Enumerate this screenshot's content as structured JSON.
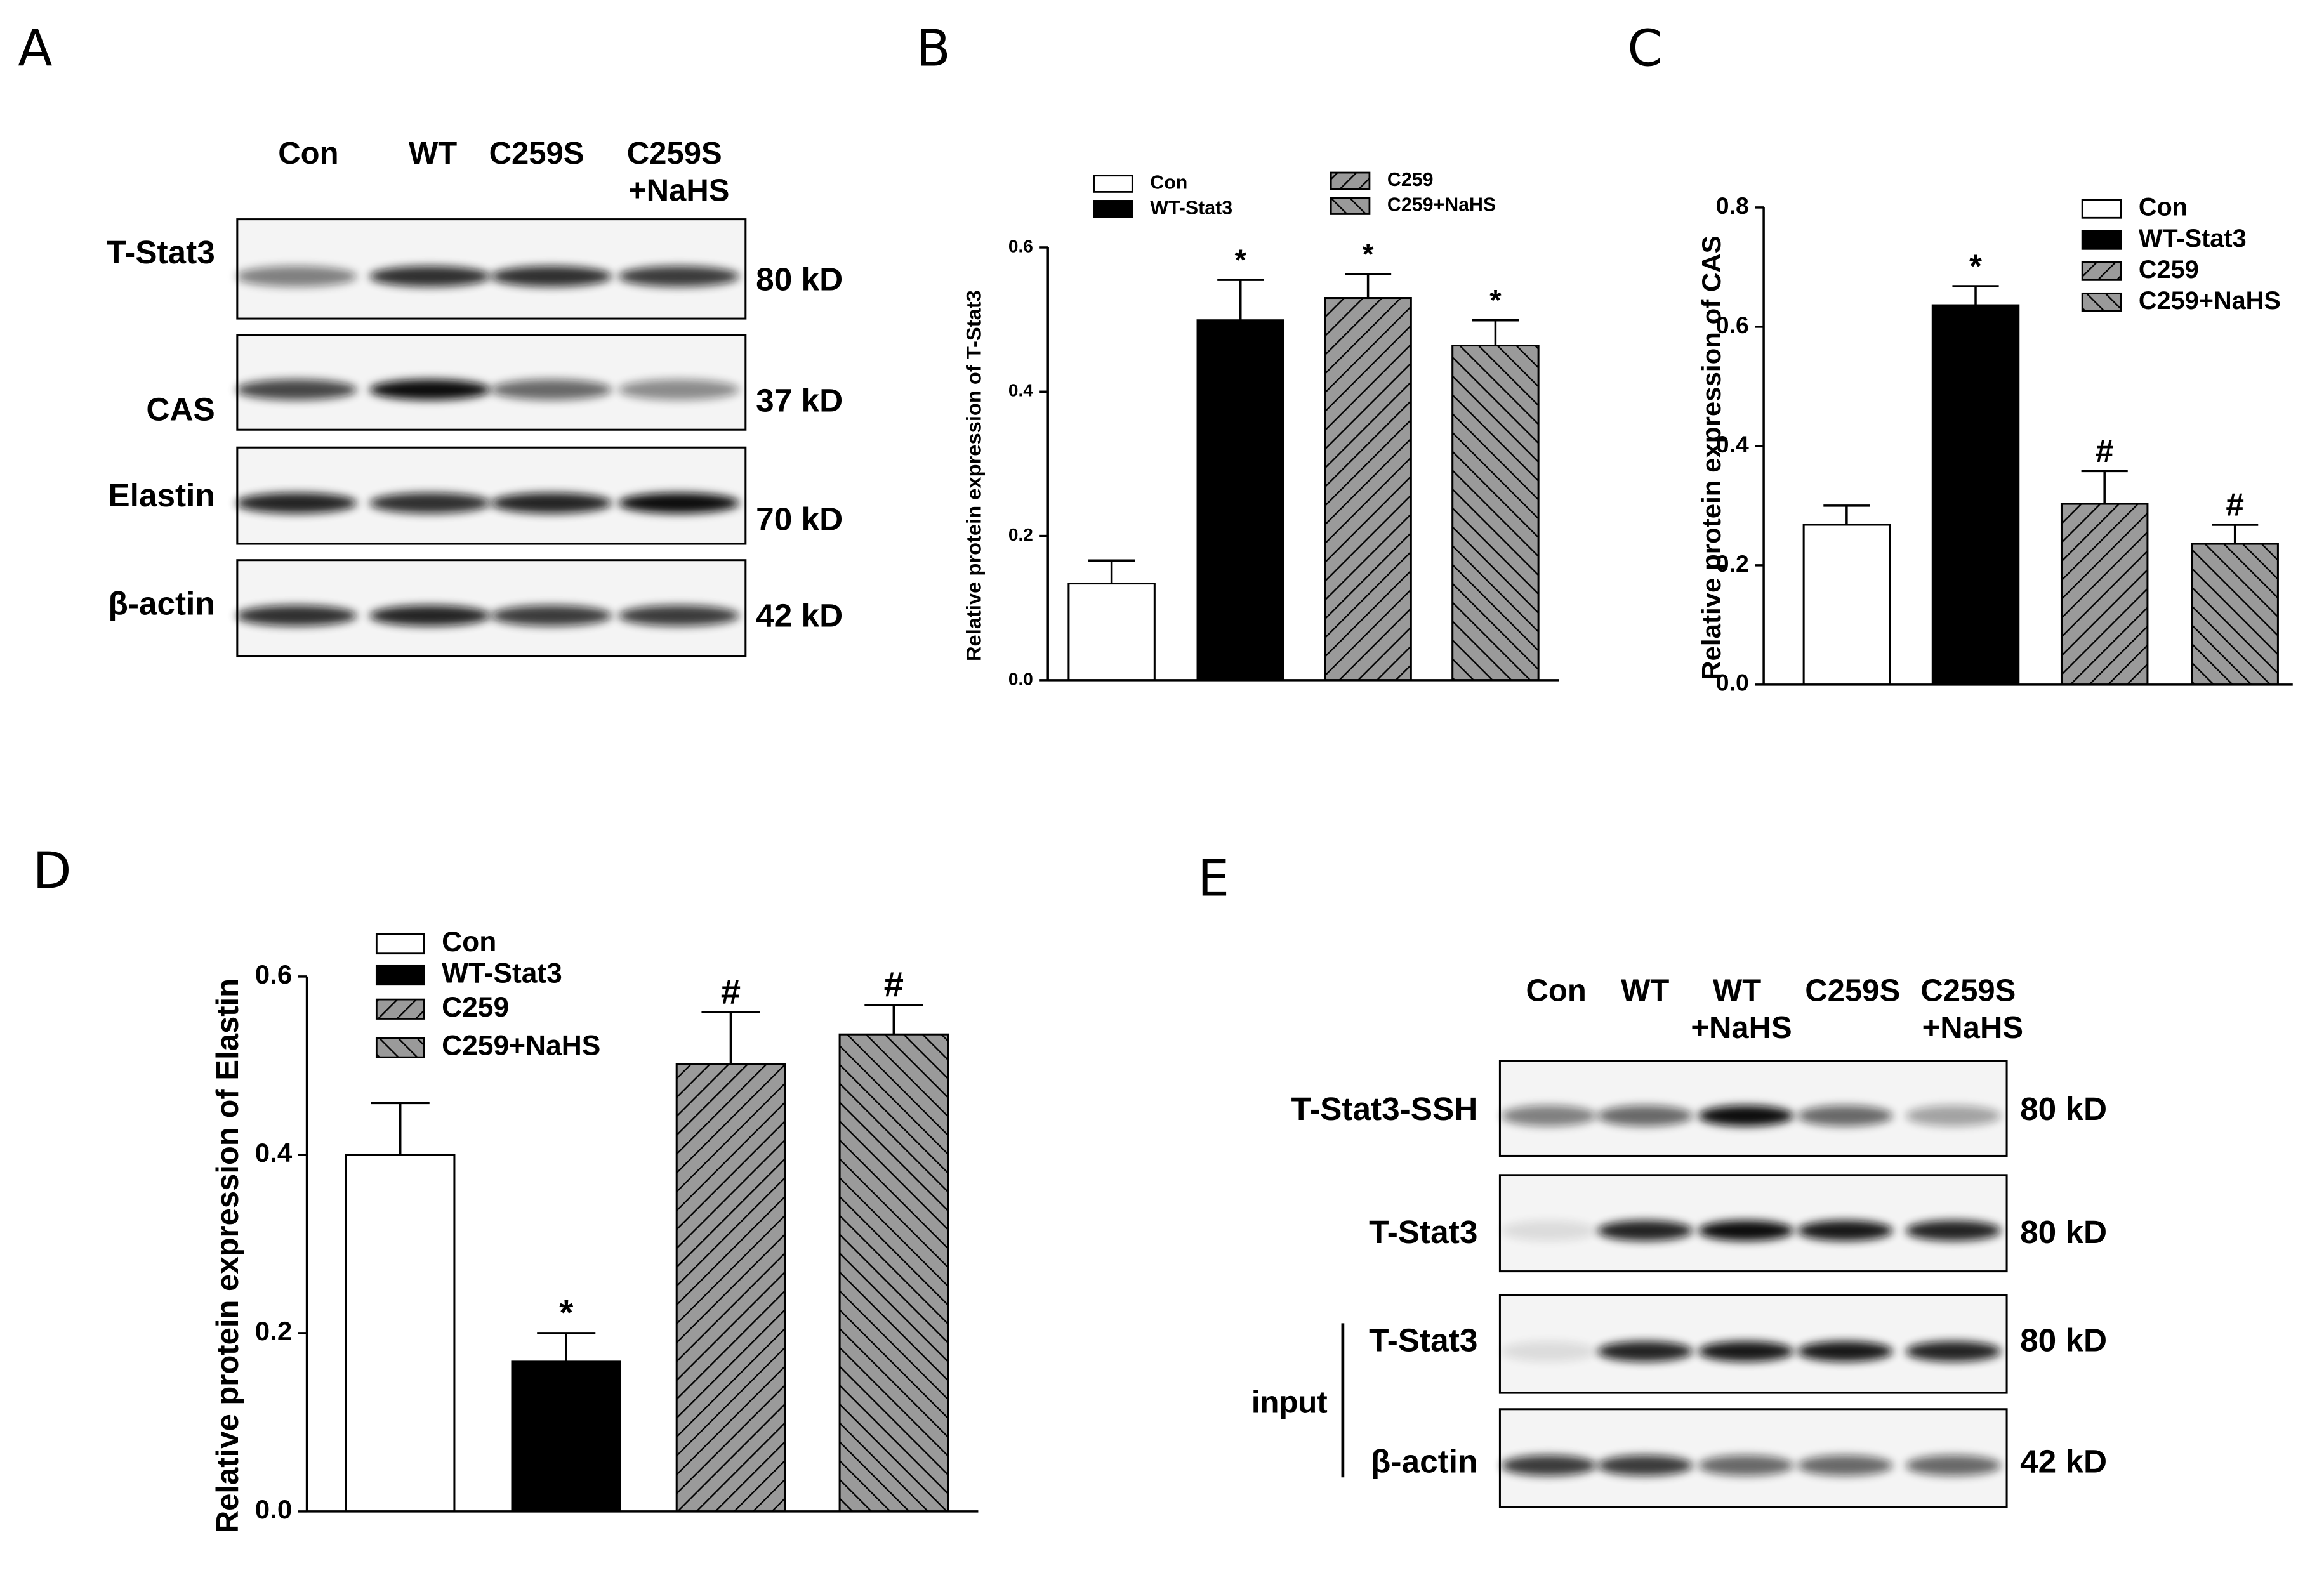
{
  "blot_a": {
    "panel": "A",
    "lanes": [
      [
        "Con"
      ],
      [
        "WT"
      ],
      [
        "C259S"
      ],
      [
        "C259S",
        "+NaHS"
      ]
    ],
    "rows": [
      {
        "label": "T-Stat3",
        "size": "80 kD"
      },
      {
        "label": "CAS",
        "size": "37 kD"
      },
      {
        "label": "Elastin",
        "size": "70 kD"
      },
      {
        "label": "β-actin",
        "size": "42 kD"
      }
    ]
  },
  "blot_e": {
    "panel": "E",
    "lanes": [
      [
        "Con"
      ],
      [
        "WT"
      ],
      [
        "WT",
        "+NaHS"
      ],
      [
        "C259S"
      ],
      [
        "C259S",
        "+NaHS"
      ]
    ],
    "rows": [
      {
        "label": "T-Stat3-SSH",
        "size": "80 kD"
      },
      {
        "label": "T-Stat3",
        "size": "80 kD"
      },
      {
        "label": "T-Stat3",
        "size": "80 kD"
      },
      {
        "label": "β-actin",
        "size": "42 kD"
      }
    ],
    "group_label": "input"
  },
  "chart_data": [
    {
      "type": "bar",
      "panel": "B",
      "ylabel": "Relative protein expression of T-Stat3",
      "ylim": [
        0,
        0.6
      ],
      "yticks": [
        {
          "value": 0,
          "label": "0.0"
        },
        0.2,
        0.4,
        0.6
      ],
      "series": [
        {
          "name": "Con",
          "color": "#ffffff",
          "hatch": "none",
          "values": [
            0.134
          ],
          "errors": [
            0.032
          ]
        },
        {
          "name": "WT-Stat3",
          "color": "#000000",
          "hatch": "none",
          "values": [
            0.499
          ],
          "errors": [
            0.056
          ],
          "annotation": "*"
        },
        {
          "name": "C259",
          "color": "#9a9a9a",
          "hatch": "/",
          "values": [
            0.53
          ],
          "errors": [
            0.033
          ],
          "annotation": "*"
        },
        {
          "name": "C259+NaHS",
          "color": "#9a9a9a",
          "hatch": "\\",
          "values": [
            0.464
          ],
          "errors": [
            0.035
          ],
          "annotation": "*"
        }
      ]
    },
    {
      "type": "bar",
      "panel": "C",
      "ylabel": "Relative protein expression of CAS",
      "ylim": [
        0,
        0.8
      ],
      "yticks": [
        {
          "value": 0,
          "label": "0.0"
        },
        0.2,
        0.4,
        0.6,
        0.8
      ],
      "series": [
        {
          "name": "Con",
          "color": "#ffffff",
          "hatch": "none",
          "values": [
            0.268
          ],
          "errors": [
            0.032
          ]
        },
        {
          "name": "WT-Stat3",
          "color": "#000000",
          "hatch": "none",
          "values": [
            0.636
          ],
          "errors": [
            0.032
          ],
          "annotation": "*"
        },
        {
          "name": "C259",
          "color": "#9a9a9a",
          "hatch": "/",
          "values": [
            0.303
          ],
          "errors": [
            0.055
          ],
          "annotation": "#"
        },
        {
          "name": "C259+NaHS",
          "color": "#9a9a9a",
          "hatch": "\\",
          "values": [
            0.236
          ],
          "errors": [
            0.032
          ],
          "annotation": "#"
        }
      ]
    },
    {
      "type": "bar",
      "panel": "D",
      "ylabel": "Relative protein expression of Elastin",
      "ylim": [
        0,
        0.6
      ],
      "yticks": [
        {
          "value": 0,
          "label": "0.0"
        },
        0.2,
        0.4,
        0.6
      ],
      "series": [
        {
          "name": "Con",
          "color": "#ffffff",
          "hatch": "none",
          "values": [
            0.4
          ],
          "errors": [
            0.058
          ]
        },
        {
          "name": "WT-Stat3",
          "color": "#000000",
          "hatch": "none",
          "values": [
            0.168
          ],
          "errors": [
            0.032
          ],
          "annotation": "*"
        },
        {
          "name": "C259",
          "color": "#9a9a9a",
          "hatch": "/",
          "values": [
            0.502
          ],
          "errors": [
            0.058
          ],
          "annotation": "#"
        },
        {
          "name": "C259+NaHS",
          "color": "#9a9a9a",
          "hatch": "\\",
          "values": [
            0.535
          ],
          "errors": [
            0.033
          ],
          "annotation": "#"
        }
      ]
    }
  ]
}
